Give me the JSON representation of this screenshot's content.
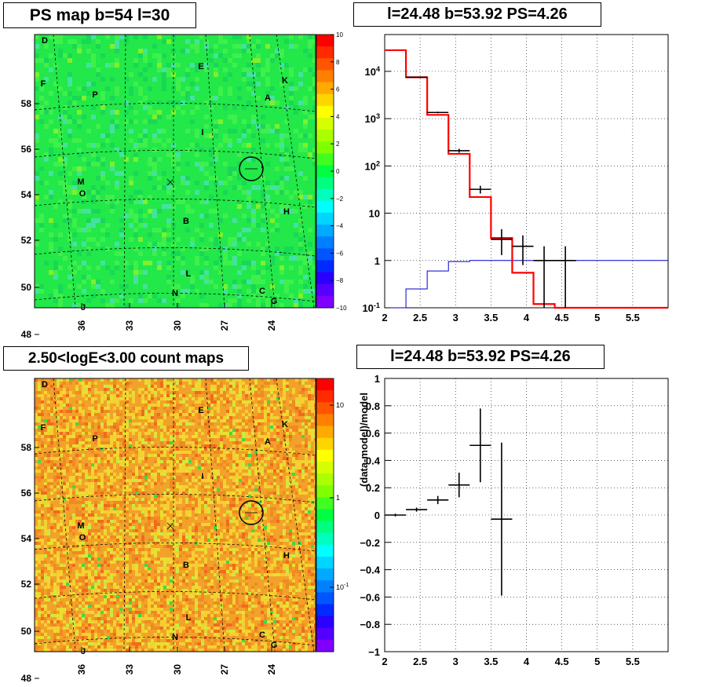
{
  "colors": {
    "map_bg_green": "#22e84a",
    "heat_bg": "#f2a22a",
    "model_line": "#ff0000",
    "background_line": "#0000cc",
    "data_marks": "#000000"
  },
  "panel_titles": {
    "ps_map": "PS map b=54 l=30",
    "spectrum": "l=24.48 b=53.92 PS=4.26",
    "count_map": "2.50<logE<3.00 count maps",
    "residual": "l=24.48 b=53.92 PS=4.26"
  },
  "chart_data": [
    {
      "type": "heatmap",
      "name": "ps_map",
      "map_y_ticks": [
        "58",
        "56",
        "54",
        "52",
        "50",
        "48"
      ],
      "map_x_ticks": [
        "36",
        "33",
        "30",
        "27",
        "24"
      ],
      "colorbar_ticks": [
        "10",
        "8",
        "6",
        "4",
        "2",
        "0",
        "−2",
        "−4",
        "−6",
        "−8",
        "−10"
      ],
      "colorbar_range": [
        -10,
        10
      ],
      "source_labels": [
        "D",
        "E",
        "F",
        "K",
        "P",
        "A",
        "I",
        "M",
        "O",
        "B",
        "H",
        "L",
        "N",
        "C",
        "G",
        "J"
      ]
    },
    {
      "type": "line",
      "name": "spectrum",
      "log_y": true,
      "xlim": [
        2,
        6
      ],
      "ylim": [
        0.1,
        60000
      ],
      "x_ticks": [
        "2",
        "2.5",
        "3",
        "3.5",
        "4",
        "4.5",
        "5",
        "5.5"
      ],
      "y_ticks": [
        "10^-1",
        "1",
        "10",
        "10^2",
        "10^3",
        "10^4"
      ],
      "model_steps": [
        {
          "x0": 2.0,
          "x1": 2.3,
          "y": 28000
        },
        {
          "x0": 2.3,
          "x1": 2.6,
          "y": 7500
        },
        {
          "x0": 2.6,
          "x1": 2.9,
          "y": 1200
        },
        {
          "x0": 2.9,
          "x1": 3.2,
          "y": 180
        },
        {
          "x0": 3.2,
          "x1": 3.5,
          "y": 22
        },
        {
          "x0": 3.5,
          "x1": 3.8,
          "y": 3.0
        },
        {
          "x0": 3.8,
          "x1": 4.1,
          "y": 0.55
        },
        {
          "x0": 4.1,
          "x1": 4.4,
          "y": 0.12
        },
        {
          "x0": 4.4,
          "x1": 6.0,
          "y": 0.1
        }
      ],
      "background_steps": [
        {
          "x0": 2.0,
          "x1": 2.3,
          "y": 0.1
        },
        {
          "x0": 2.3,
          "x1": 2.6,
          "y": 0.25
        },
        {
          "x0": 2.6,
          "x1": 2.9,
          "y": 0.6
        },
        {
          "x0": 2.9,
          "x1": 3.2,
          "y": 0.95
        },
        {
          "x0": 3.2,
          "x1": 6.0,
          "y": 1.0
        }
      ],
      "data_points": [
        {
          "x": 2.45,
          "y": 7500,
          "lo": 7400,
          "hi": 7600
        },
        {
          "x": 2.75,
          "y": 1350,
          "lo": 1300,
          "hi": 1400
        },
        {
          "x": 3.05,
          "y": 210,
          "lo": 190,
          "hi": 230
        },
        {
          "x": 3.35,
          "y": 32,
          "lo": 26,
          "hi": 38
        },
        {
          "x": 3.65,
          "y": 2.8,
          "lo": 1.3,
          "hi": 4.6
        },
        {
          "x": 3.95,
          "y": 2.0,
          "lo": 0.8,
          "hi": 3.4
        },
        {
          "x": 4.25,
          "y": 1.0,
          "lo": 0.1,
          "hi": 2.0
        },
        {
          "x": 4.55,
          "y": 1.0,
          "lo": 0.1,
          "hi": 2.0
        }
      ]
    },
    {
      "type": "heatmap",
      "name": "count_map",
      "map_y_ticks": [
        "58",
        "56",
        "54",
        "52",
        "50",
        "48"
      ],
      "map_x_ticks": [
        "36",
        "33",
        "30",
        "27",
        "24"
      ],
      "colorbar_ticks": [
        "10",
        "1",
        "10^-1"
      ],
      "colorbar_log": true,
      "source_labels": [
        "D",
        "E",
        "F",
        "K",
        "P",
        "A",
        "I",
        "M",
        "O",
        "B",
        "H",
        "L",
        "N",
        "C",
        "G",
        "J"
      ]
    },
    {
      "type": "scatter",
      "name": "residual",
      "ylabel": "(data-model)/model",
      "xlim": [
        2,
        6
      ],
      "ylim": [
        -1,
        1
      ],
      "x_ticks": [
        "2",
        "2.5",
        "3",
        "3.5",
        "4",
        "4.5",
        "5",
        "5.5"
      ],
      "y_ticks": [
        "1",
        "0.8",
        "0.6",
        "0.4",
        "0.2",
        "0",
        "−0.2",
        "−0.4",
        "−0.6",
        "−0.8",
        "−1"
      ],
      "points": [
        {
          "x": 2.15,
          "y": 0.0,
          "err": 0.01
        },
        {
          "x": 2.45,
          "y": 0.04,
          "err": 0.015
        },
        {
          "x": 2.75,
          "y": 0.11,
          "err": 0.03
        },
        {
          "x": 3.05,
          "y": 0.22,
          "err": 0.09
        },
        {
          "x": 3.35,
          "y": 0.51,
          "err": 0.27
        },
        {
          "x": 3.65,
          "y": -0.03,
          "err": 0.56
        }
      ]
    }
  ]
}
